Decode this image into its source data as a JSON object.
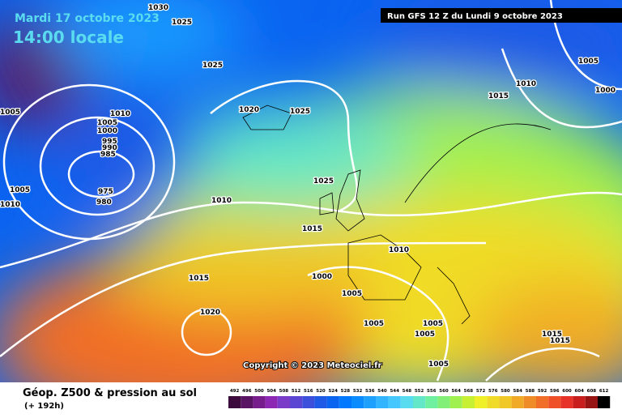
{
  "header": {
    "date": "Mardi 17 octobre 2023",
    "time": "14:00 locale",
    "run": "Run GFS 12 Z du Lundi 9 octobre 2023"
  },
  "copyright": "Copyright © 2023 Meteociel.fr",
  "legend": {
    "title": "Géop. Z500 & pression au sol",
    "subtitle": "(+ 192h)",
    "scale": [
      492,
      496,
      500,
      504,
      508,
      512,
      516,
      520,
      524,
      528,
      532,
      536,
      540,
      544,
      548,
      552,
      556,
      560,
      564,
      568,
      572,
      576,
      580,
      584,
      588,
      592,
      596,
      600,
      604,
      608,
      612
    ],
    "colors": [
      "#3c0a3c",
      "#5a1464",
      "#781e8c",
      "#8c28b4",
      "#7a3cc8",
      "#5a46d2",
      "#3c50dc",
      "#1e5ae6",
      "#0a64f0",
      "#0078ff",
      "#0a8cff",
      "#1ea0ff",
      "#32b4ff",
      "#46c8ff",
      "#5adcf0",
      "#64e6c8",
      "#6ef0a0",
      "#82f078",
      "#a0f050",
      "#c8f032",
      "#f0f028",
      "#f0dc28",
      "#f0c828",
      "#f0aa28",
      "#f08c28",
      "#f06e28",
      "#f05028",
      "#e63228",
      "#c81e1e",
      "#961414",
      "#000000"
    ]
  },
  "isobar_labels": [
    1030,
    1025,
    1025,
    1005,
    1010,
    1005,
    1000,
    995,
    990,
    985,
    1005,
    975,
    980,
    1010,
    1010,
    1020,
    1025,
    1025,
    1015,
    1010,
    1000,
    1005,
    1015,
    1020,
    1005,
    1005,
    1005,
    1005,
    1005,
    1010,
    1000,
    1015,
    1015,
    1015
  ]
}
